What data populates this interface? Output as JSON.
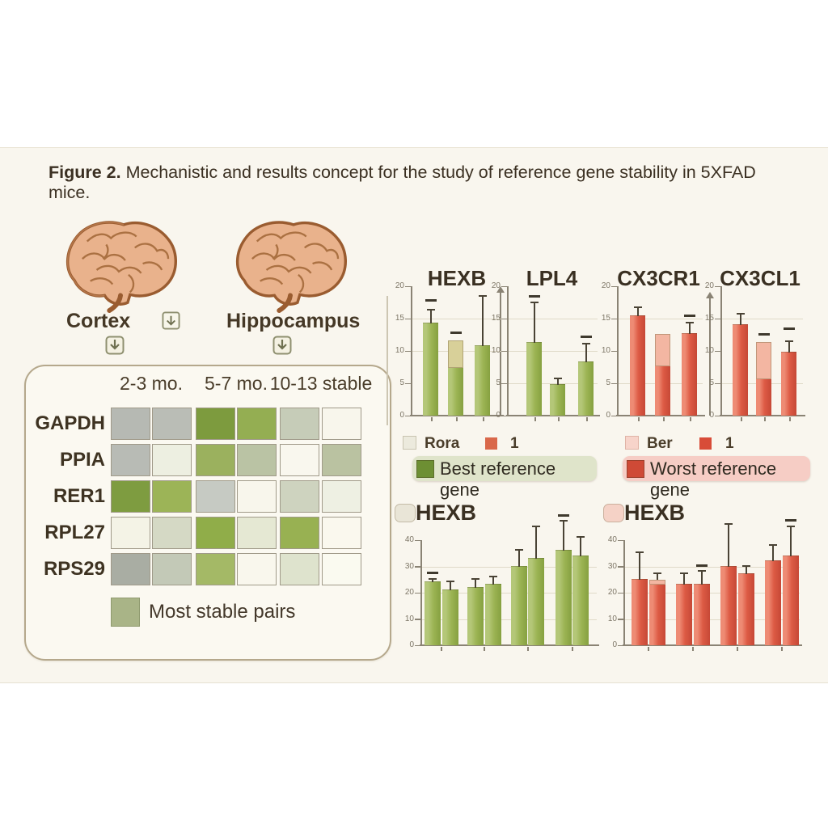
{
  "figure": {
    "title_prefix": "Figure 2.",
    "title_rest": " Mechanistic and results concept for the study of reference gene stability in 5XFAD mice."
  },
  "regions": {
    "left_label": "Cortex",
    "right_label": "Hippocampus"
  },
  "heatmap": {
    "col_headers": [
      "2-3 mo.",
      "5-7 mo.",
      "10-13 stable"
    ],
    "row_labels": [
      "GAPDH",
      "PPIA",
      "RER1",
      "RPL27",
      "RPS29"
    ],
    "cell_colors": [
      [
        "#b6b9b3",
        "#babdb6",
        "#7d9b3e",
        "#94ae52",
        "#c6ccb8",
        "#f8f6ec"
      ],
      [
        "#b8bbb5",
        "#edefe1",
        "#9bb15e",
        "#bac3a4",
        "#f9f7ee",
        "#bac2a1"
      ],
      [
        "#7e9c40",
        "#9cb457",
        "#c6cac3",
        "#f8f6ec",
        "#ced3bf",
        "#eef0e3"
      ],
      [
        "#f4f3e6",
        "#d5d9c5",
        "#90ad49",
        "#e5e8d3",
        "#98b152",
        "#faf8ee"
      ],
      [
        "#a9ada3",
        "#c3c9b7",
        "#a4b966",
        "#f9f7ed",
        "#dee3cd",
        "#fafaf0"
      ]
    ],
    "legend": {
      "label": "Most stable pairs",
      "swatch_color": "#a9b487"
    }
  },
  "mini_legend": {
    "left": {
      "item1_label": "Rora",
      "item1_swatch": "#eceadd",
      "item2_label": "1",
      "item2_swatch": "#d9684a"
    },
    "right": {
      "item1_label": "Ber",
      "item1_swatch": "#f7d4ca",
      "item2_label": "1",
      "item2_swatch": "#d84c38"
    }
  },
  "legend_pills": {
    "best": {
      "label": "Best reference gene",
      "swatch": "#6d8f33",
      "bg": "#dfe4ca"
    },
    "worst": {
      "label": "Worst reference gene",
      "swatch": "#cf4a36",
      "bg": "#f6cdc5"
    }
  },
  "chart_data": [
    {
      "type": "bar",
      "title": "HEXB",
      "ylim": [
        0,
        20
      ],
      "yticks": [
        "20",
        "15",
        "10",
        "5",
        "0"
      ],
      "values": [
        14.2,
        7.4,
        10.8
      ],
      "errors": [
        16.2,
        null,
        18.4
      ],
      "caps": [
        null,
        11.6,
        null
      ],
      "dashes": [
        17.6,
        12.6,
        null
      ],
      "bar_colors": [
        "#b4c778",
        "#9cb454",
        "#86a140"
      ],
      "cap_color": "#d8d099"
    },
    {
      "type": "bar",
      "title": "LPL4",
      "ylim": [
        0,
        20
      ],
      "yticks": [
        "20",
        "15",
        "10",
        "5",
        "0"
      ],
      "values": [
        11.2,
        4.8,
        8.2
      ],
      "errors": [
        17.4,
        5.6,
        11.0
      ],
      "caps": [
        null,
        null,
        null
      ],
      "dashes": [
        18.2,
        null,
        12.0
      ],
      "bar_colors": [
        "#b4c778",
        "#9cb454",
        "#86a140"
      ],
      "cap_color": "#d8d099"
    },
    {
      "type": "bar",
      "title": "CX3CR1",
      "ylim": [
        0,
        20
      ],
      "yticks": [
        "20",
        "15",
        "10",
        "5",
        "0"
      ],
      "values": [
        15.4,
        7.6,
        12.6
      ],
      "errors": [
        16.6,
        null,
        14.2
      ],
      "caps": [
        null,
        12.6,
        null
      ],
      "dashes": [
        null,
        null,
        15.2
      ],
      "bar_colors": [
        "#ee8b74",
        "#dd5b45",
        "#c64836"
      ],
      "cap_color": "#f3b6a2"
    },
    {
      "type": "bar",
      "title": "CX3CL1",
      "ylim": [
        0,
        20
      ],
      "yticks": [
        "20",
        "15",
        "10",
        "5",
        "0"
      ],
      "values": [
        14.0,
        5.6,
        9.8
      ],
      "errors": [
        15.6,
        null,
        11.4
      ],
      "caps": [
        null,
        11.4,
        null
      ],
      "dashes": [
        null,
        12.4,
        13.2
      ],
      "bar_colors": [
        "#ee8b74",
        "#dd5b45",
        "#c64836"
      ],
      "cap_color": "#f3b6a2"
    },
    {
      "type": "bar",
      "title": "HEXB",
      "ylim": [
        0,
        40
      ],
      "yticks": [
        "40",
        "30",
        "20",
        "10",
        "0"
      ],
      "title_swatch": "#e9e5d7",
      "values": [
        24,
        21,
        22,
        23,
        30,
        33,
        36,
        34
      ],
      "errors": [
        25,
        24,
        25,
        26,
        36,
        45,
        47,
        41
      ],
      "caps": [
        null,
        null,
        null,
        null,
        null,
        null,
        null,
        null
      ],
      "dashes": [
        27,
        null,
        null,
        null,
        null,
        null,
        49,
        null
      ],
      "bar_colors": [
        "#b4c778",
        "#9cb454",
        "#86a140"
      ],
      "cap_color": "#d8d099"
    },
    {
      "type": "bar",
      "title": "HEXB",
      "ylim": [
        0,
        40
      ],
      "yticks": [
        "40",
        "30",
        "20",
        "10",
        "0"
      ],
      "title_swatch": "#f5d2c6",
      "values": [
        25,
        23,
        23,
        23,
        30,
        27,
        32,
        34
      ],
      "errors": [
        35,
        27,
        27,
        28,
        46,
        30,
        38,
        45
      ],
      "caps": [
        null,
        25,
        null,
        null,
        null,
        null,
        null,
        null
      ],
      "dashes": [
        null,
        null,
        null,
        30,
        null,
        null,
        null,
        47
      ],
      "bar_colors": [
        "#ee8b74",
        "#dd5b45",
        "#c64836"
      ],
      "cap_color": "#f3b6a2"
    }
  ]
}
